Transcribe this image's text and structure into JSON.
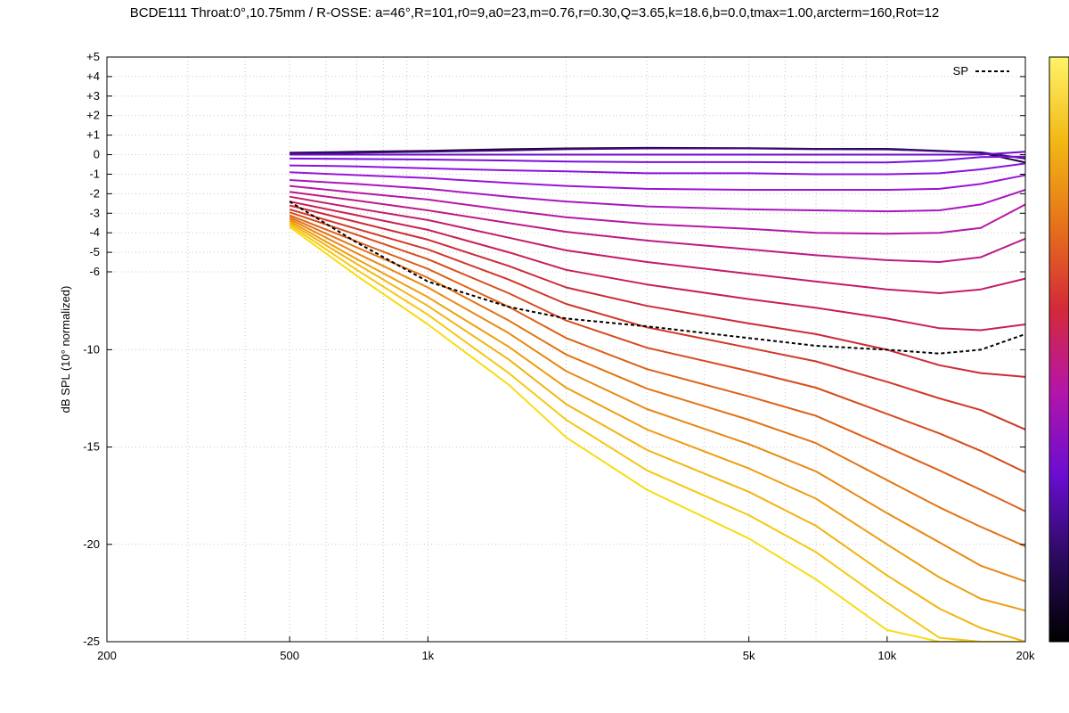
{
  "chart_data": {
    "type": "line",
    "title": "BCDE111 Throat:0°,10.75mm / R-OSSE: a=46°,R=101,r0=9,a0=23,m=0.76,r=0.30,Q=3.65,k=18.6,b=0.0,tmax=1.00,arcterm=160,Rot=12",
    "xlabel": "",
    "ylabel": "dB SPL (10° normalized)",
    "x_scale": "log",
    "xlim": [
      200,
      20000
    ],
    "ylim": [
      -25,
      5
    ],
    "grid": true,
    "legend_position": "top-right",
    "x_ticks": [
      {
        "value": 200,
        "label": "200"
      },
      {
        "value": 500,
        "label": "500"
      },
      {
        "value": 1000,
        "label": "1k"
      },
      {
        "value": 5000,
        "label": "5k"
      },
      {
        "value": 10000,
        "label": "10k"
      },
      {
        "value": 20000,
        "label": "20k"
      }
    ],
    "y_ticks": [
      {
        "value": 5,
        "label": "+5"
      },
      {
        "value": 4,
        "label": "+4"
      },
      {
        "value": 3,
        "label": "+3"
      },
      {
        "value": 2,
        "label": "+2"
      },
      {
        "value": 1,
        "label": "+1"
      },
      {
        "value": 0,
        "label": "0"
      },
      {
        "value": -1,
        "label": "-1"
      },
      {
        "value": -2,
        "label": "-2"
      },
      {
        "value": -3,
        "label": "-3"
      },
      {
        "value": -4,
        "label": "-4"
      },
      {
        "value": -5,
        "label": "-5"
      },
      {
        "value": -6,
        "label": "-6"
      },
      {
        "value": -10,
        "label": "-10"
      },
      {
        "value": -15,
        "label": "-15"
      },
      {
        "value": -20,
        "label": "-20"
      },
      {
        "value": -25,
        "label": "-25"
      }
    ],
    "x": [
      500,
      700,
      1000,
      1500,
      2000,
      3000,
      5000,
      7000,
      10000,
      13000,
      16000,
      20000
    ],
    "series": [
      {
        "color": "#1a0630",
        "values": [
          0.1,
          0.15,
          0.2,
          0.28,
          0.32,
          0.35,
          0.33,
          0.3,
          0.3,
          0.2,
          0.1,
          -0.4
        ]
      },
      {
        "color": "#3f0a7a",
        "values": [
          0.05,
          0.1,
          0.15,
          0.22,
          0.28,
          0.32,
          0.32,
          0.28,
          0.27,
          0.18,
          0.12,
          -0.2
        ]
      },
      {
        "color": "#6a0ec8",
        "values": [
          0.0,
          0.0,
          0.0,
          0.0,
          0.0,
          0.0,
          0.0,
          0.0,
          0.0,
          0.0,
          0.0,
          0.15
        ]
      },
      {
        "color": "#7a10da",
        "values": [
          -0.2,
          -0.22,
          -0.25,
          -0.3,
          -0.35,
          -0.38,
          -0.38,
          -0.4,
          -0.4,
          -0.3,
          -0.12,
          -0.1
        ]
      },
      {
        "color": "#8a12e0",
        "values": [
          -0.55,
          -0.6,
          -0.7,
          -0.8,
          -0.85,
          -0.95,
          -0.95,
          -1.0,
          -1.0,
          -0.95,
          -0.75,
          -0.45
        ]
      },
      {
        "color": "#9a14d8",
        "values": [
          -0.9,
          -1.05,
          -1.2,
          -1.45,
          -1.6,
          -1.75,
          -1.8,
          -1.8,
          -1.8,
          -1.75,
          -1.5,
          -1.05
        ]
      },
      {
        "color": "#a816c0",
        "values": [
          -1.3,
          -1.5,
          -1.75,
          -2.15,
          -2.4,
          -2.65,
          -2.8,
          -2.85,
          -2.9,
          -2.85,
          -2.55,
          -1.8
        ]
      },
      {
        "color": "#b418a6",
        "values": [
          -1.6,
          -1.95,
          -2.3,
          -2.85,
          -3.2,
          -3.55,
          -3.8,
          -4.0,
          -4.05,
          -4.0,
          -3.75,
          -2.55
        ]
      },
      {
        "color": "#bc1a88",
        "values": [
          -1.9,
          -2.35,
          -2.85,
          -3.5,
          -3.95,
          -4.4,
          -4.85,
          -5.15,
          -5.4,
          -5.5,
          -5.25,
          -4.3
        ]
      },
      {
        "color": "#c21c6a",
        "values": [
          -2.15,
          -2.75,
          -3.35,
          -4.25,
          -4.9,
          -5.5,
          -6.1,
          -6.5,
          -6.9,
          -7.1,
          -6.9,
          -6.35
        ]
      },
      {
        "color": "#c82050",
        "values": [
          -2.4,
          -3.1,
          -3.85,
          -5.0,
          -5.9,
          -6.65,
          -7.4,
          -7.85,
          -8.4,
          -8.9,
          -9.0,
          -8.7
        ]
      },
      {
        "color": "#cc2a38",
        "values": [
          -2.6,
          -3.45,
          -4.35,
          -5.7,
          -6.8,
          -7.75,
          -8.65,
          -9.2,
          -10.0,
          -10.8,
          -11.2,
          -11.4
        ]
      },
      {
        "color": "#d03828",
        "values": [
          -2.8,
          -3.8,
          -4.85,
          -6.4,
          -7.65,
          -8.85,
          -9.9,
          -10.6,
          -11.65,
          -12.5,
          -13.1,
          -14.1
        ]
      },
      {
        "color": "#d64c1e",
        "values": [
          -2.95,
          -4.1,
          -5.35,
          -7.1,
          -8.5,
          -9.9,
          -11.1,
          -11.95,
          -13.3,
          -14.3,
          -15.2,
          -16.3
        ]
      },
      {
        "color": "#dc6018",
        "values": [
          -3.1,
          -4.45,
          -5.85,
          -7.8,
          -9.4,
          -11.0,
          -12.4,
          -13.4,
          -15.0,
          -16.2,
          -17.2,
          -18.3
        ]
      },
      {
        "color": "#e27414",
        "values": [
          -3.2,
          -4.75,
          -6.3,
          -8.5,
          -10.25,
          -12.0,
          -13.6,
          -14.8,
          -16.7,
          -18.1,
          -19.1,
          -20.1
        ]
      },
      {
        "color": "#e88812",
        "values": [
          -3.3,
          -5.05,
          -6.8,
          -9.15,
          -11.1,
          -13.05,
          -14.85,
          -16.25,
          -18.4,
          -19.9,
          -21.1,
          -21.9
        ]
      },
      {
        "color": "#ee9e10",
        "values": [
          -3.4,
          -5.35,
          -7.3,
          -9.85,
          -11.95,
          -14.1,
          -16.1,
          -17.65,
          -20.0,
          -21.7,
          -22.8,
          -23.4
        ]
      },
      {
        "color": "#f2b410",
        "values": [
          -3.5,
          -5.6,
          -7.75,
          -10.5,
          -12.8,
          -15.15,
          -17.3,
          -19.05,
          -21.6,
          -23.3,
          -24.3,
          -25.0
        ]
      },
      {
        "color": "#f5c812",
        "values": [
          -3.6,
          -5.9,
          -8.2,
          -11.2,
          -13.6,
          -16.2,
          -18.5,
          -20.4,
          -23.0,
          -24.8,
          -25.0,
          -25.0
        ]
      },
      {
        "color": "#f8dc14",
        "values": [
          -3.7,
          -6.2,
          -8.7,
          -11.8,
          -14.5,
          -17.2,
          -19.7,
          -21.8,
          -24.4,
          -25.0,
          -25.0,
          -25.0
        ]
      },
      {
        "name": "SP",
        "color": "#000000",
        "dashed": true,
        "values": [
          -2.4,
          -4.5,
          -6.5,
          -7.8,
          -8.4,
          -8.8,
          -9.4,
          -9.8,
          -10.0,
          -10.2,
          -10.0,
          -9.2
        ]
      }
    ],
    "colorbar": {
      "colors": [
        "#000000",
        "#2a0a5e",
        "#6a0dd0",
        "#b415a8",
        "#d42a38",
        "#e6731a",
        "#f2b914",
        "#fff36a"
      ]
    }
  }
}
